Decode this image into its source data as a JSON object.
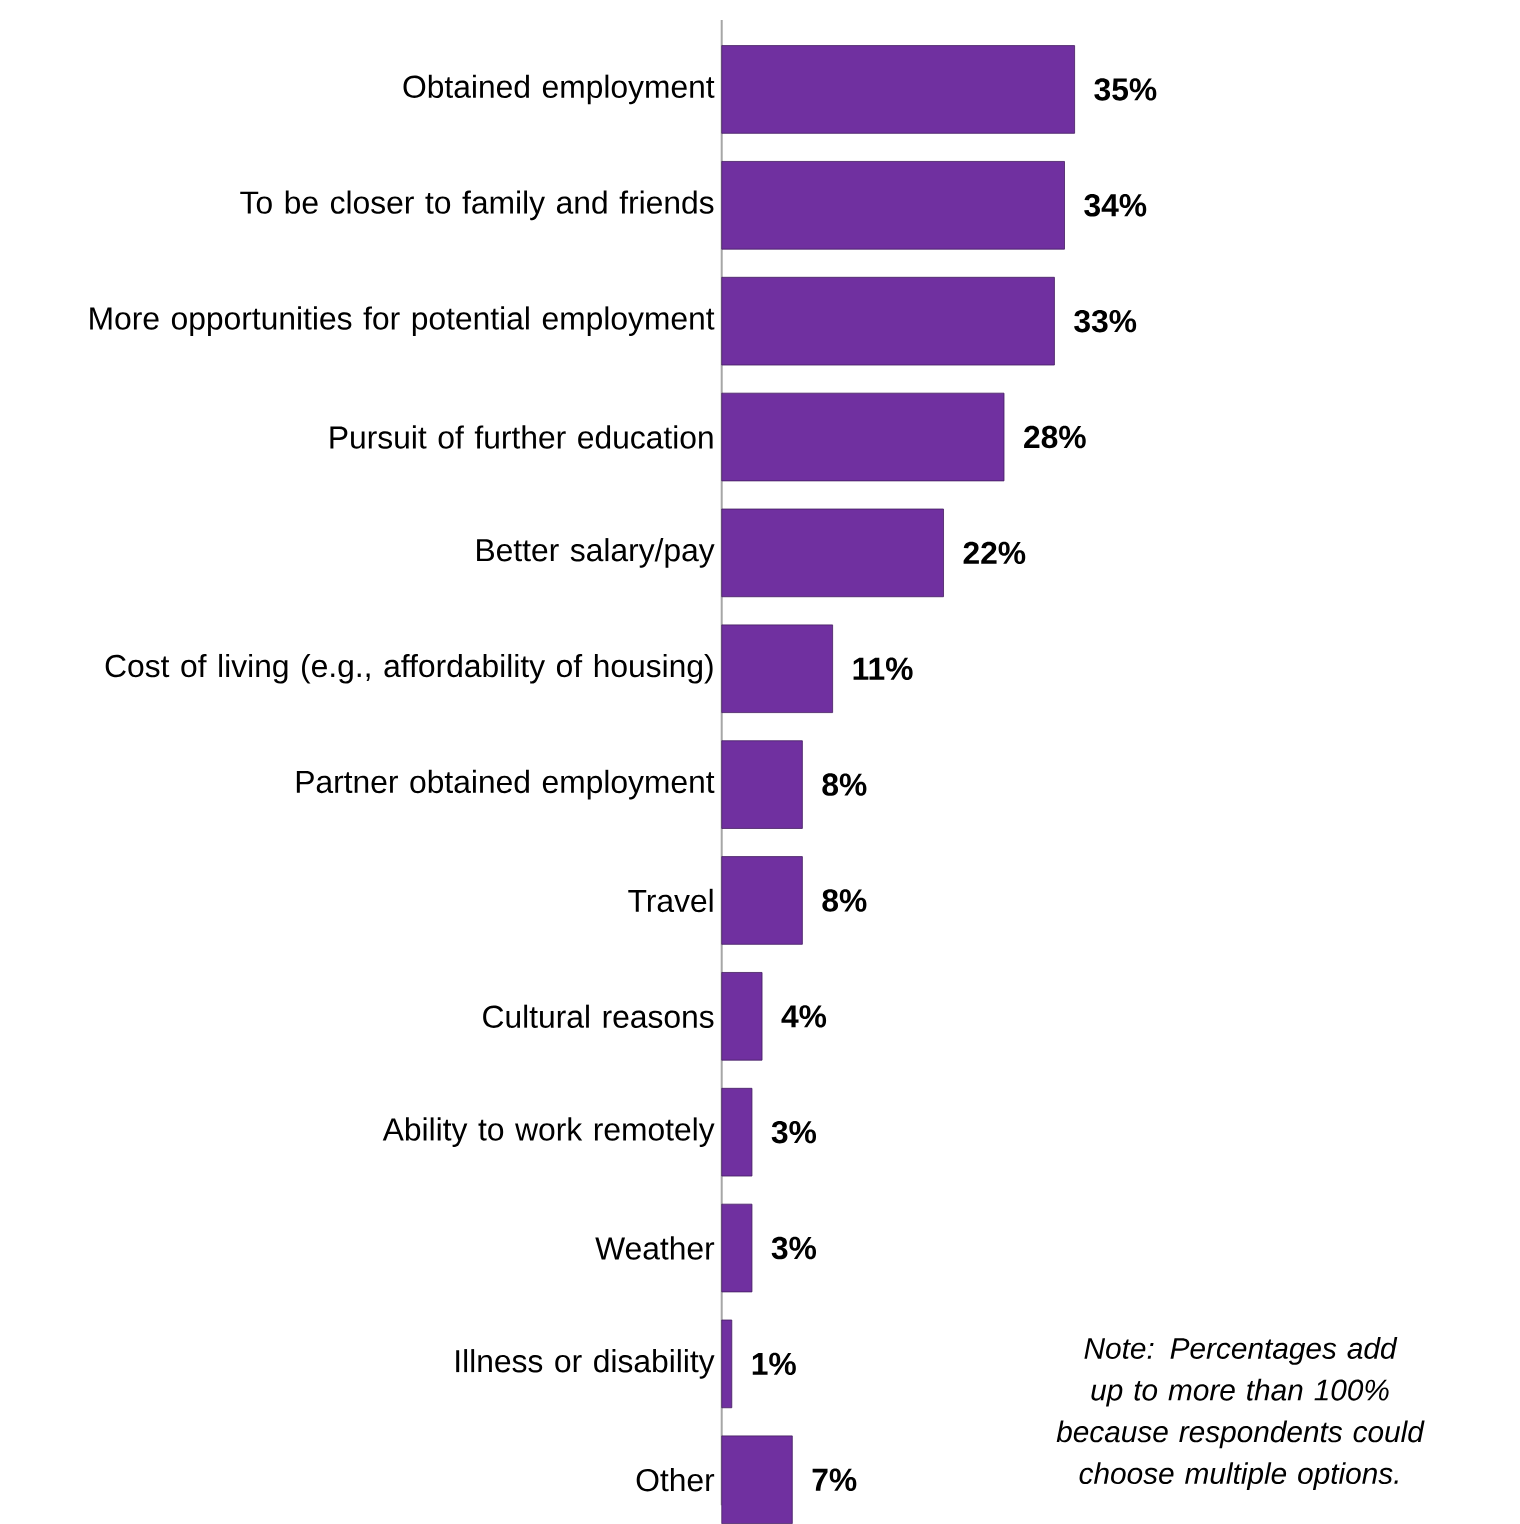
{
  "chart_data": {
    "type": "bar",
    "orientation": "horizontal",
    "categories": [
      "Obtained employment",
      "To be closer to family and friends",
      "More opportunities for potential employment",
      "Pursuit of further education",
      "Better salary/pay",
      "Cost of living (e.g., affordability of housing)",
      "Partner obtained employment",
      "Travel",
      "Cultural reasons",
      "Ability to work remotely",
      "Weather",
      "Illness or disability",
      "Other"
    ],
    "values": [
      35,
      34,
      33,
      28,
      22,
      11,
      8,
      8,
      4,
      3,
      3,
      1,
      7
    ],
    "value_labels": [
      "35%",
      "34%",
      "33%",
      "28%",
      "22%",
      "11%",
      "8%",
      "8%",
      "4%",
      "3%",
      "3%",
      "1%",
      "7%"
    ],
    "color": "#7030a0",
    "annotations": [
      "Note: Percentages add up to more than 100% because respondents could choose multiple options."
    ]
  }
}
